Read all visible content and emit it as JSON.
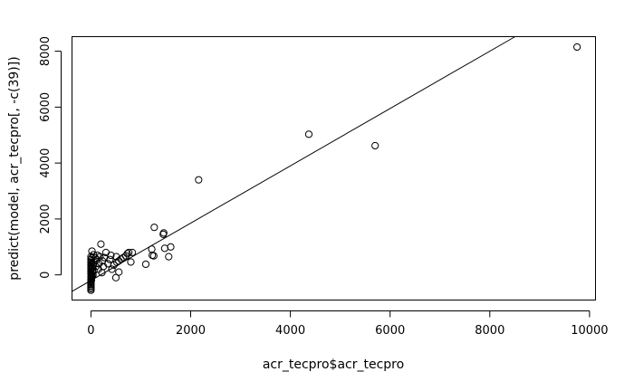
{
  "chart_data": {
    "type": "scatter",
    "title": "",
    "xlabel": "acr_tecpro$acr_tecpro",
    "ylabel": "predict(model, acr_tecpro[, -c(39)])",
    "xlim": [
      -380,
      10120
    ],
    "ylim": [
      -900,
      8520
    ],
    "x_ticks": [
      0,
      2000,
      4000,
      6000,
      8000,
      10000
    ],
    "x_tick_labels": [
      "0",
      "2000",
      "4000",
      "6000",
      "8000",
      "10000"
    ],
    "y_ticks": [
      0,
      2000,
      4000,
      6000,
      8000
    ],
    "y_tick_labels": [
      "0",
      "2000",
      "4000",
      "6000",
      "8000"
    ],
    "grid": false,
    "reference_line": {
      "intercept": -200,
      "slope": 1.025
    },
    "points": [
      {
        "x": 9750,
        "y": 8150
      },
      {
        "x": 5700,
        "y": 4620
      },
      {
        "x": 4370,
        "y": 5030
      },
      {
        "x": 2160,
        "y": 3400
      },
      {
        "x": 1600,
        "y": 1000
      },
      {
        "x": 1560,
        "y": 650
      },
      {
        "x": 1480,
        "y": 950
      },
      {
        "x": 1460,
        "y": 1500
      },
      {
        "x": 1450,
        "y": 1450
      },
      {
        "x": 1270,
        "y": 1700
      },
      {
        "x": 1260,
        "y": 680
      },
      {
        "x": 1230,
        "y": 700
      },
      {
        "x": 1220,
        "y": 920
      },
      {
        "x": 1100,
        "y": 380
      },
      {
        "x": 830,
        "y": 800
      },
      {
        "x": 800,
        "y": 460
      },
      {
        "x": 760,
        "y": 800
      },
      {
        "x": 730,
        "y": 760
      },
      {
        "x": 700,
        "y": 680
      },
      {
        "x": 650,
        "y": 620
      },
      {
        "x": 600,
        "y": 560
      },
      {
        "x": 560,
        "y": 500
      },
      {
        "x": 560,
        "y": 100
      },
      {
        "x": 520,
        "y": 450
      },
      {
        "x": 510,
        "y": 650
      },
      {
        "x": 500,
        "y": -100
      },
      {
        "x": 460,
        "y": 350
      },
      {
        "x": 420,
        "y": 200
      },
      {
        "x": 400,
        "y": 700
      },
      {
        "x": 380,
        "y": 550
      },
      {
        "x": 340,
        "y": 400
      },
      {
        "x": 300,
        "y": 800
      },
      {
        "x": 270,
        "y": 620
      },
      {
        "x": 250,
        "y": 300
      },
      {
        "x": 230,
        "y": 500
      },
      {
        "x": 220,
        "y": 80
      },
      {
        "x": 200,
        "y": 1100
      },
      {
        "x": 180,
        "y": 650
      },
      {
        "x": 160,
        "y": 400
      },
      {
        "x": 150,
        "y": 200
      },
      {
        "x": 130,
        "y": 700
      },
      {
        "x": 110,
        "y": 550
      },
      {
        "x": 100,
        "y": 300
      },
      {
        "x": 90,
        "y": 600
      },
      {
        "x": 70,
        "y": 450
      },
      {
        "x": 60,
        "y": 150
      },
      {
        "x": 50,
        "y": 720
      },
      {
        "x": 40,
        "y": 350
      },
      {
        "x": 20,
        "y": 850
      },
      {
        "x": 15,
        "y": 600
      },
      {
        "x": 10,
        "y": 500
      },
      {
        "x": 8,
        "y": 400
      },
      {
        "x": 5,
        "y": 300
      },
      {
        "x": 5,
        "y": 200
      },
      {
        "x": 3,
        "y": 100
      },
      {
        "x": 3,
        "y": 0
      },
      {
        "x": 2,
        "y": -50
      },
      {
        "x": 2,
        "y": -100
      },
      {
        "x": 1,
        "y": -150
      },
      {
        "x": 1,
        "y": -200
      },
      {
        "x": 1,
        "y": -250
      },
      {
        "x": 0,
        "y": -300
      },
      {
        "x": 0,
        "y": -350
      },
      {
        "x": 0,
        "y": -400
      },
      {
        "x": 0,
        "y": -450
      },
      {
        "x": 0,
        "y": -500
      },
      {
        "x": 0,
        "y": -550
      },
      {
        "x": 0,
        "y": 50
      },
      {
        "x": 0,
        "y": 150
      },
      {
        "x": 0,
        "y": 250
      },
      {
        "x": 0,
        "y": 350
      },
      {
        "x": 0,
        "y": 450
      },
      {
        "x": 0,
        "y": 550
      },
      {
        "x": 0,
        "y": 650
      },
      {
        "x": 10,
        "y": -80
      },
      {
        "x": 10,
        "y": -180
      },
      {
        "x": 10,
        "y": 20
      },
      {
        "x": 20,
        "y": -30
      },
      {
        "x": 30,
        "y": 120
      },
      {
        "x": 30,
        "y": 250
      },
      {
        "x": 40,
        "y": -10
      }
    ]
  }
}
